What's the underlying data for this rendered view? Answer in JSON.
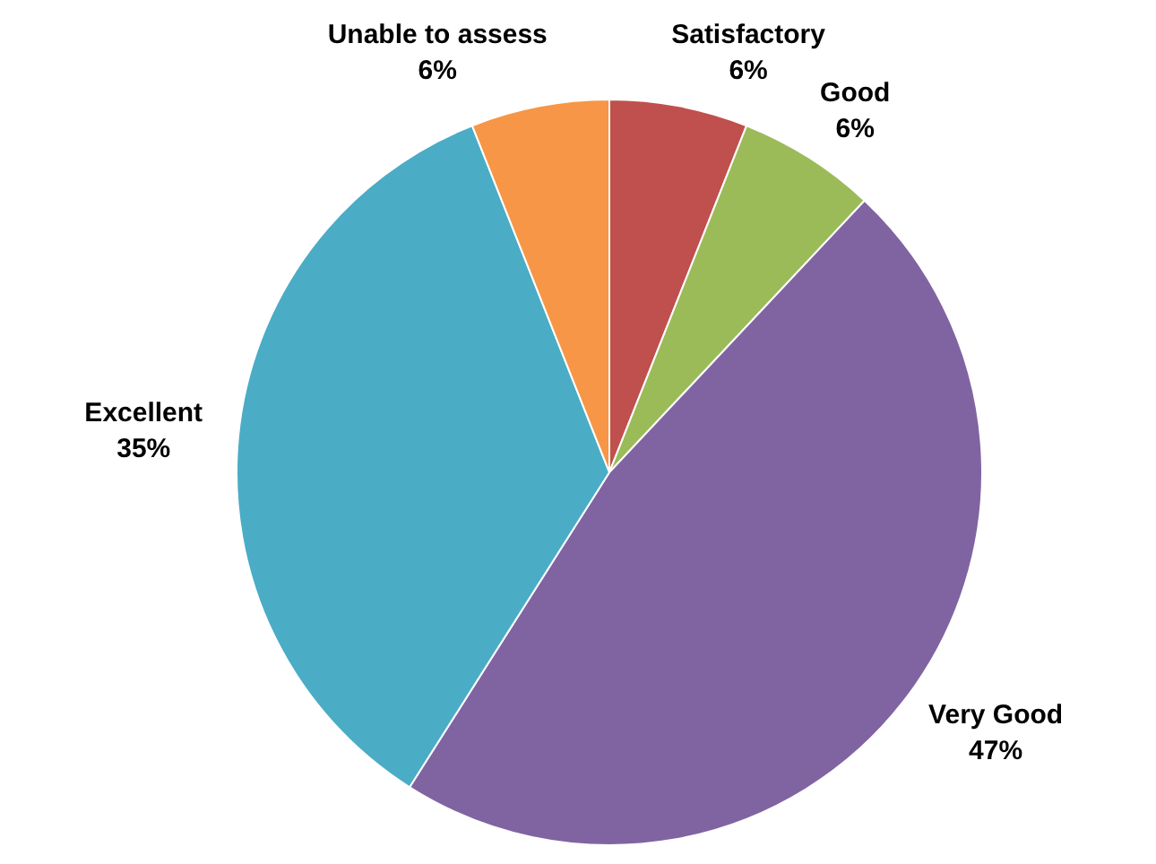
{
  "chart_data": {
    "type": "pie",
    "categories": [
      "Satisfactory",
      "Good",
      "Very Good",
      "Excellent",
      "Unable to assess"
    ],
    "values": [
      6,
      6,
      47,
      35,
      6
    ],
    "colors": [
      "#c0504d",
      "#9bbb59",
      "#8064a2",
      "#4bacc6",
      "#f79646"
    ],
    "value_labels": [
      "6%",
      "6%",
      "47%",
      "35%",
      "6%"
    ],
    "legend": false
  }
}
